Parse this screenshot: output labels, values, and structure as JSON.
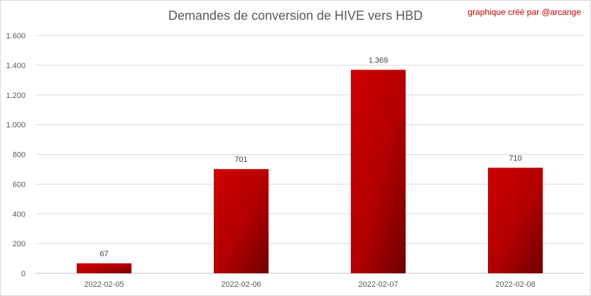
{
  "chart_data": {
    "type": "bar",
    "title": "Demandes de conversion de HIVE vers HBD",
    "credit": "graphique créé par @arcange",
    "categories": [
      "2022-02-05",
      "2022-02-06",
      "2022-02-07",
      "2022-02-08"
    ],
    "values": [
      67,
      701,
      1369,
      710
    ],
    "value_labels": [
      "67",
      "701",
      "1.369",
      "710"
    ],
    "yticks": [
      0,
      200,
      400,
      600,
      800,
      1000,
      1200,
      1400,
      1600
    ],
    "ytick_labels": [
      "0",
      "200",
      "400",
      "600",
      "800",
      "1.000",
      "1.200",
      "1.400",
      "1.600"
    ],
    "ylim": [
      0,
      1600
    ],
    "xlabel": "",
    "ylabel": "",
    "grid": true,
    "legend": "none",
    "colors": {
      "bar_light": "#d00000",
      "bar_dark": "#6e0000",
      "grid": "#d9d9d9",
      "credit": "#c00000"
    }
  }
}
